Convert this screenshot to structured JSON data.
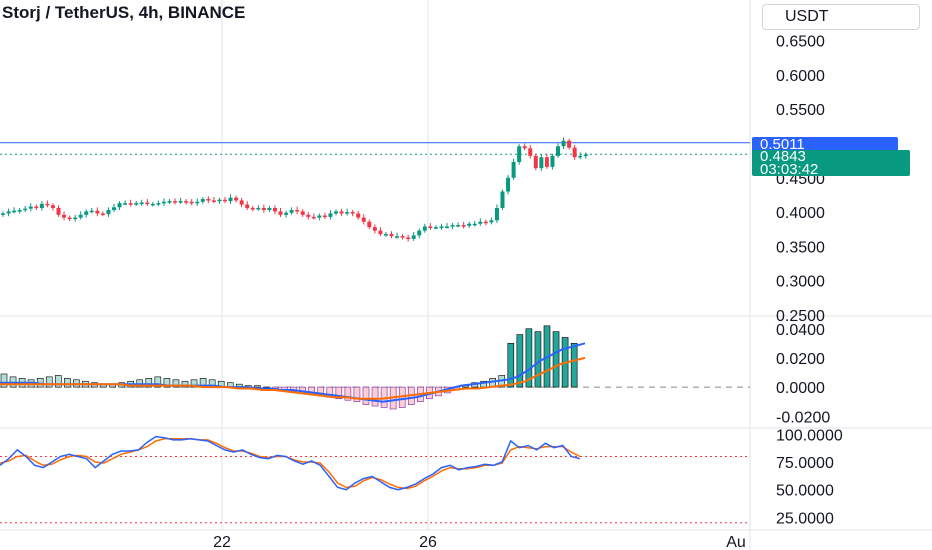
{
  "header": {
    "title": "Storj / TetherUS, 4h, BINANCE",
    "currency_button": "USDT"
  },
  "price_tags": {
    "last_price": "0.5011",
    "current_price": "0.4843",
    "countdown": "03:03:42"
  },
  "colors": {
    "up": "#089981",
    "down": "#f23645",
    "last_line": "#2962ff",
    "current_line": "#089981",
    "fast_line": "#2962ff",
    "slow_line": "#ff6d00",
    "stoch_k": "#2962ff",
    "stoch_d": "#ff6d00",
    "grid": "#e0e3eb"
  },
  "chart_data": [
    {
      "type": "candlestick",
      "title": "Storj / TetherUS, 4h, BINANCE",
      "y_ticks": [
        "0.6500",
        "0.6000",
        "0.5500",
        "0.5011",
        "0.4500",
        "0.4000",
        "0.3500",
        "0.3000",
        "0.2500"
      ],
      "x_ticks": [
        "22",
        "26",
        "Au"
      ],
      "ylim": [
        0.25,
        0.68
      ],
      "last_price_line": 0.5011,
      "current_price_line": 0.4843,
      "close_series": [
        0.398,
        0.401,
        0.402,
        0.403,
        0.405,
        0.408,
        0.406,
        0.412,
        0.41,
        0.406,
        0.396,
        0.392,
        0.39,
        0.392,
        0.396,
        0.401,
        0.402,
        0.398,
        0.397,
        0.403,
        0.407,
        0.413,
        0.413,
        0.412,
        0.413,
        0.414,
        0.412,
        0.412,
        0.413,
        0.415,
        0.416,
        0.415,
        0.416,
        0.415,
        0.413,
        0.415,
        0.419,
        0.417,
        0.416,
        0.418,
        0.416,
        0.421,
        0.417,
        0.411,
        0.406,
        0.405,
        0.406,
        0.403,
        0.406,
        0.401,
        0.396,
        0.399,
        0.403,
        0.401,
        0.396,
        0.393,
        0.392,
        0.395,
        0.393,
        0.398,
        0.401,
        0.398,
        0.4,
        0.398,
        0.392,
        0.386,
        0.378,
        0.373,
        0.368,
        0.368,
        0.365,
        0.365,
        0.363,
        0.361,
        0.366,
        0.373,
        0.379,
        0.378,
        0.378,
        0.379,
        0.379,
        0.381,
        0.381,
        0.38,
        0.383,
        0.383,
        0.386,
        0.385,
        0.388,
        0.406,
        0.43,
        0.45,
        0.473,
        0.496,
        0.493,
        0.482,
        0.464,
        0.48,
        0.466,
        0.482,
        0.496,
        0.504,
        0.494,
        0.48,
        0.482,
        0.484
      ]
    },
    {
      "type": "histogram",
      "indicator": "MACD",
      "y_ticks": [
        "0.0400",
        "0.0200",
        "0.0000",
        "-0.0200"
      ],
      "ylim": [
        -0.026,
        0.046
      ],
      "histogram": [
        0.009,
        0.007,
        0.006,
        0.005,
        0.006,
        0.007,
        0.008,
        0.006,
        0.005,
        0.004,
        0.003,
        0.002,
        0.002,
        0.003,
        0.004,
        0.005,
        0.006,
        0.007,
        0.006,
        0.005,
        0.004,
        0.005,
        0.006,
        0.005,
        0.004,
        0.003,
        0.002,
        0.001,
        0.001,
        0.0,
        -0.001,
        -0.002,
        -0.003,
        -0.004,
        -0.005,
        -0.006,
        -0.007,
        -0.008,
        -0.009,
        -0.01,
        -0.012,
        -0.013,
        -0.014,
        -0.015,
        -0.014,
        -0.012,
        -0.01,
        -0.008,
        -0.006,
        -0.004,
        -0.002,
        0.001,
        0.003,
        0.004,
        0.006,
        0.008,
        0.03,
        0.036,
        0.04,
        0.038,
        0.042,
        0.038,
        0.034,
        0.03
      ],
      "fast_line": [
        0.003,
        0.003,
        0.003,
        0.003,
        0.002,
        0.002,
        0.002,
        0.002,
        0.002,
        0.002,
        0.002,
        0.002,
        0.002,
        0.002,
        0.002,
        0.001,
        0.001,
        0.001,
        0.001,
        0.001,
        0.0,
        0.0,
        0.0,
        -0.001,
        -0.001,
        -0.002,
        -0.002,
        -0.003,
        -0.004,
        -0.005,
        -0.006,
        -0.007,
        -0.008,
        -0.009,
        -0.01,
        -0.009,
        -0.008,
        -0.007,
        -0.005,
        -0.003,
        -0.001,
        0.001,
        0.002,
        0.003,
        0.004,
        0.005,
        0.007,
        0.012,
        0.018,
        0.022,
        0.026,
        0.028,
        0.03
      ],
      "slow_line": [
        0.002,
        0.002,
        0.002,
        0.002,
        0.002,
        0.002,
        0.002,
        0.002,
        0.002,
        0.002,
        0.002,
        0.001,
        0.001,
        0.001,
        0.001,
        0.001,
        0.001,
        0.0,
        0.0,
        0.0,
        -0.001,
        -0.001,
        -0.002,
        -0.002,
        -0.003,
        -0.004,
        -0.005,
        -0.006,
        -0.007,
        -0.007,
        -0.008,
        -0.008,
        -0.008,
        -0.007,
        -0.006,
        -0.005,
        -0.004,
        -0.003,
        -0.002,
        -0.001,
        -0.001,
        0.0,
        0.001,
        0.002,
        0.004,
        0.008,
        0.012,
        0.016,
        0.018,
        0.02
      ],
      "zero_line": 0.0
    },
    {
      "type": "line",
      "indicator": "Stochastic RSI",
      "y_ticks": [
        "100.0000",
        "75.0000",
        "50.0000",
        "25.0000"
      ],
      "ylim": [
        18,
        104
      ],
      "overbought_line": 80,
      "oversold_line": 20,
      "series": [
        {
          "values": [
            72,
            78,
            86,
            80,
            72,
            70,
            75,
            80,
            82,
            80,
            78,
            70,
            76,
            82,
            85,
            85,
            86,
            93,
            98,
            97,
            95,
            95,
            96,
            95,
            94,
            90,
            86,
            84,
            86,
            82,
            79,
            78,
            81,
            80,
            76,
            73,
            76,
            72,
            62,
            52,
            50,
            56,
            60,
            62,
            57,
            52,
            50,
            52,
            55,
            60,
            64,
            70,
            72,
            68,
            70,
            71,
            73,
            72,
            75,
            94,
            88,
            90,
            86,
            92,
            88,
            90,
            80,
            78
          ]
        },
        {
          "values": [
            74,
            76,
            80,
            81,
            76,
            72,
            73,
            77,
            80,
            81,
            80,
            75,
            74,
            78,
            82,
            84,
            86,
            89,
            94,
            96,
            96,
            96,
            96,
            95,
            95,
            92,
            88,
            85,
            85,
            83,
            80,
            79,
            80,
            80,
            77,
            75,
            75,
            74,
            66,
            56,
            52,
            53,
            58,
            61,
            59,
            55,
            52,
            51,
            53,
            58,
            62,
            67,
            70,
            69,
            69,
            70,
            72,
            72,
            74,
            86,
            89,
            88,
            87,
            89,
            89,
            89,
            84,
            80
          ]
        }
      ]
    }
  ]
}
